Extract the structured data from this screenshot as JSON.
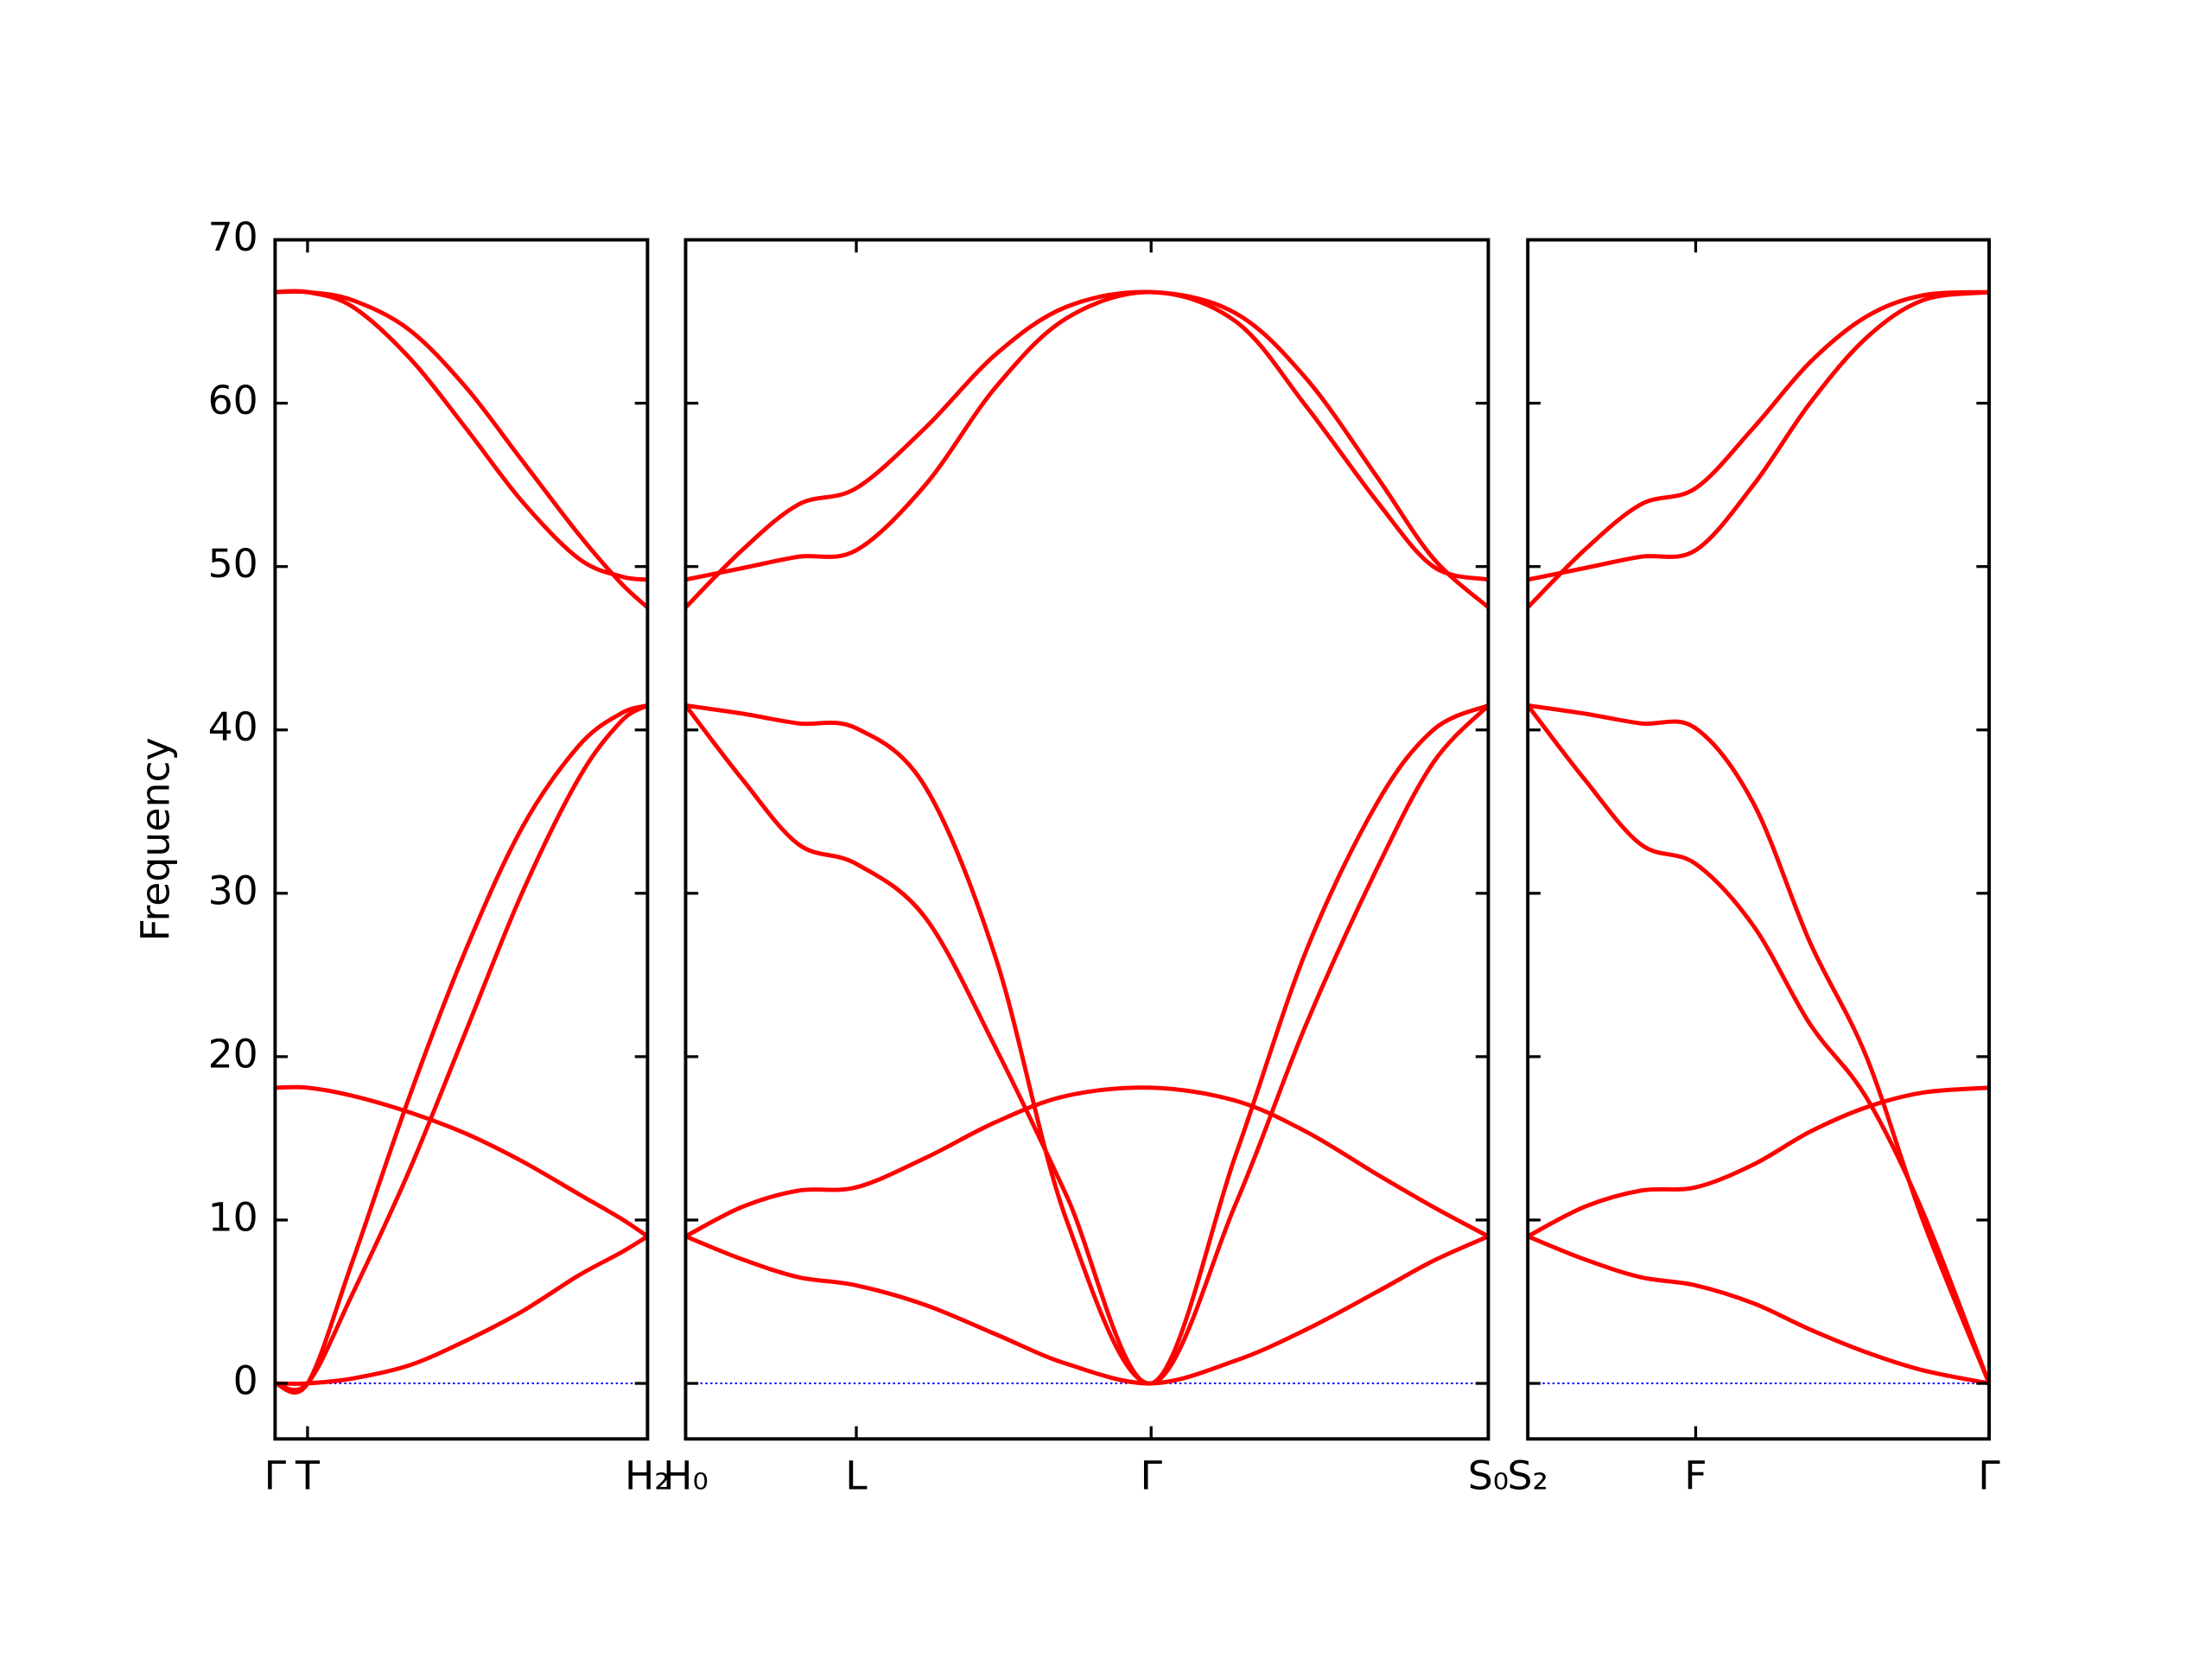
{
  "chart_data": [
    {
      "type": "line",
      "ylabel": "Frequency",
      "ylim": [
        -3.4,
        70
      ],
      "yticks": [
        0,
        10,
        20,
        30,
        40,
        50,
        60,
        70
      ],
      "ytick_labels": true,
      "xlim": [
        0,
        2.64
      ],
      "xticks": [
        {
          "value": 0,
          "label": "Γ"
        },
        {
          "value": 0.23,
          "label": "T"
        },
        {
          "value": 2.64,
          "label": "H₂"
        }
      ],
      "hline": 0,
      "hline_color": "#0000ff",
      "x": [
        0,
        0.23,
        0.55,
        0.95,
        1.35,
        1.75,
        2.15,
        2.45,
        2.64
      ],
      "series": [
        {
          "color": "#ff0000",
          "values": [
            0,
            0,
            0.3,
            1.1,
            2.6,
            4.4,
            6.6,
            8.0,
            9.0
          ]
        },
        {
          "color": "#ff0000",
          "values": [
            18.1,
            18.1,
            17.6,
            16.6,
            15.3,
            13.6,
            11.6,
            10.1,
            9.0
          ]
        },
        {
          "color": "#ff0000",
          "values": [
            0,
            0,
            7.5,
            17.5,
            26.5,
            34,
            39,
            41,
            41.5
          ]
        },
        {
          "color": "#ff0000",
          "values": [
            0,
            0,
            5.5,
            13,
            21.5,
            30,
            37,
            40.5,
            41.5
          ]
        },
        {
          "color": "#ff0000",
          "values": [
            66.8,
            66.8,
            66.3,
            64.5,
            61,
            56.5,
            52,
            49,
            47.5
          ]
        },
        {
          "color": "#ff0000",
          "values": [
            66.8,
            66.8,
            65.9,
            62.8,
            58.5,
            54,
            50.5,
            49.4,
            49.2
          ]
        }
      ]
    },
    {
      "type": "line",
      "ylim": [
        -3.4,
        70
      ],
      "yticks": [
        0,
        10,
        20,
        30,
        40,
        50,
        60,
        70
      ],
      "ytick_labels": false,
      "xlim": [
        0,
        5.69
      ],
      "xticks": [
        {
          "value": 0,
          "label": "H₀"
        },
        {
          "value": 1.21,
          "label": "L"
        },
        {
          "value": 3.3,
          "label": "Γ"
        },
        {
          "value": 5.69,
          "label": "S₀"
        }
      ],
      "hline": 0,
      "hline_color": "#0000ff",
      "x": [
        0,
        0.4,
        0.8,
        1.21,
        1.7,
        2.2,
        2.7,
        3.3,
        3.9,
        4.4,
        4.9,
        5.3,
        5.69
      ],
      "series": [
        {
          "color": "#ff0000",
          "values": [
            9,
            7.6,
            6.5,
            6,
            4.8,
            3.0,
            1.2,
            0,
            1.4,
            3.3,
            5.6,
            7.5,
            9
          ]
        },
        {
          "color": "#ff0000",
          "values": [
            9,
            10.8,
            11.8,
            12,
            13.8,
            16,
            17.6,
            18.1,
            17.3,
            15.4,
            12.8,
            10.8,
            9
          ]
        },
        {
          "color": "#ff0000",
          "values": [
            41.5,
            37,
            33,
            31.8,
            28.5,
            20.5,
            11.5,
            0,
            14,
            26.5,
            35.5,
            40,
            41.5
          ]
        },
        {
          "color": "#ff0000",
          "values": [
            41.5,
            41,
            40.4,
            40.1,
            36.5,
            26,
            10,
            0,
            11,
            22,
            31.5,
            38,
            41.5
          ]
        },
        {
          "color": "#ff0000",
          "values": [
            47.5,
            51,
            53.8,
            54.8,
            58.5,
            63,
            65.9,
            66.8,
            65.5,
            61.5,
            55.5,
            50.5,
            47.5
          ]
        },
        {
          "color": "#ff0000",
          "values": [
            49.2,
            49.9,
            50.6,
            51,
            55,
            61,
            65.2,
            66.8,
            65,
            59.8,
            54,
            50,
            49.2
          ]
        }
      ]
    },
    {
      "type": "line",
      "ylim": [
        -3.4,
        70
      ],
      "yticks": [
        0,
        10,
        20,
        30,
        40,
        50,
        60,
        70
      ],
      "ytick_labels": false,
      "xlim": [
        0,
        3.27
      ],
      "xticks": [
        {
          "value": 0,
          "label": "S₂"
        },
        {
          "value": 1.19,
          "label": "F"
        },
        {
          "value": 3.27,
          "label": "Γ"
        }
      ],
      "hline": 0,
      "hline_color": "#0000ff",
      "x": [
        0,
        0.4,
        0.8,
        1.19,
        1.6,
        2.0,
        2.4,
        2.8,
        3.27
      ],
      "series": [
        {
          "color": "#ff0000",
          "values": [
            9,
            7.6,
            6.5,
            6,
            4.9,
            3.3,
            1.9,
            0.8,
            0
          ]
        },
        {
          "color": "#ff0000",
          "values": [
            9,
            10.8,
            11.8,
            12,
            13.4,
            15.4,
            16.9,
            17.8,
            18.1
          ]
        },
        {
          "color": "#ff0000",
          "values": [
            41.5,
            37,
            33,
            31.8,
            28,
            22,
            17.5,
            10.5,
            0
          ]
        },
        {
          "color": "#ff0000",
          "values": [
            41.5,
            41,
            40.4,
            40.1,
            35.5,
            27,
            20,
            10,
            0
          ]
        },
        {
          "color": "#ff0000",
          "values": [
            47.5,
            51,
            53.8,
            54.8,
            58.5,
            62.5,
            65.3,
            66.6,
            66.8
          ]
        },
        {
          "color": "#ff0000",
          "values": [
            49.2,
            49.9,
            50.6,
            51,
            55,
            60,
            64,
            66.3,
            66.8
          ]
        }
      ]
    }
  ]
}
